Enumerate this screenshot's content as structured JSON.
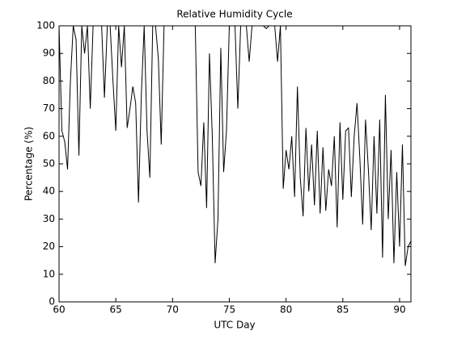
{
  "chart_data": {
    "type": "line",
    "title": "Relative Humidity Cycle",
    "xlabel": "UTC Day",
    "ylabel": "Percentage (%)",
    "color": "#000000",
    "x": [
      60,
      60.25,
      60.5,
      60.75,
      61,
      61.25,
      61.5,
      61.75,
      62,
      62.25,
      62.5,
      62.75,
      63,
      63.25,
      63.5,
      63.75,
      64,
      64.25,
      64.5,
      64.75,
      65,
      65.25,
      65.5,
      65.75,
      66,
      66.25,
      66.5,
      66.75,
      67,
      67.25,
      67.5,
      67.75,
      68,
      68.25,
      68.5,
      68.75,
      69,
      69.25,
      69.5,
      69.75,
      70,
      70.25,
      70.5,
      70.75,
      71,
      71.25,
      71.5,
      71.75,
      72,
      72.25,
      72.5,
      72.75,
      73,
      73.25,
      73.5,
      73.75,
      74,
      74.25,
      74.5,
      74.75,
      75,
      75.25,
      75.5,
      75.75,
      76,
      76.25,
      76.5,
      76.75,
      77,
      77.25,
      77.5,
      77.75,
      78,
      78.25,
      78.5,
      78.75,
      79,
      79.25,
      79.5,
      79.75,
      80,
      80.25,
      80.5,
      80.75,
      81,
      81.25,
      81.5,
      81.75,
      82,
      82.25,
      82.5,
      82.75,
      83,
      83.25,
      83.5,
      83.75,
      84,
      84.25,
      84.5,
      84.75,
      85,
      85.25,
      85.5,
      85.75,
      86,
      86.25,
      86.5,
      86.75,
      87,
      87.25,
      87.5,
      87.75,
      88,
      88.25,
      88.5,
      88.75,
      89,
      89.25,
      89.5,
      89.75,
      90,
      90.25,
      90.5,
      90.75,
      91
    ],
    "values": [
      100,
      62,
      58,
      48,
      80,
      100,
      95,
      53,
      100,
      90,
      100,
      70,
      100,
      100,
      100,
      100,
      74,
      100,
      100,
      80,
      62,
      100,
      85,
      100,
      63,
      70,
      78,
      72,
      36,
      75,
      100,
      62,
      45,
      100,
      100,
      88,
      57,
      100,
      100,
      100,
      100,
      100,
      100,
      100,
      100,
      100,
      100,
      100,
      100,
      47,
      42,
      65,
      34,
      90,
      60,
      14,
      30,
      92,
      47,
      62,
      100,
      100,
      100,
      70,
      100,
      100,
      100,
      87,
      100,
      100,
      100,
      100,
      100,
      99,
      100,
      100,
      100,
      87,
      100,
      41,
      55,
      48,
      60,
      38,
      78,
      45,
      31,
      63,
      40,
      57,
      35,
      62,
      32,
      56,
      33,
      48,
      42,
      60,
      27,
      65,
      37,
      62,
      63,
      38,
      60,
      72,
      52,
      28,
      66,
      48,
      26,
      60,
      32,
      66,
      16,
      75,
      30,
      55,
      14,
      47,
      20,
      57,
      13,
      20,
      22
    ],
    "xlim": [
      60,
      91
    ],
    "xticks": [
      60,
      65,
      70,
      75,
      80,
      85,
      90
    ],
    "ylim": [
      0,
      100
    ],
    "yticks": [
      0,
      10,
      20,
      30,
      40,
      50,
      60,
      70,
      80,
      90,
      100
    ]
  }
}
